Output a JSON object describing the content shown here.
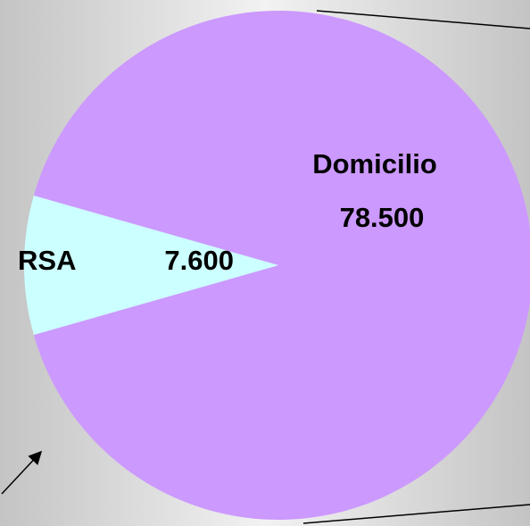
{
  "chart_data": {
    "type": "pie",
    "categories": [
      "Domicilio",
      "RSA"
    ],
    "values": [
      78500,
      7600
    ],
    "value_labels": [
      "78.500",
      "7.600"
    ],
    "colors": [
      "#cc99ff",
      "#ccffff"
    ]
  }
}
